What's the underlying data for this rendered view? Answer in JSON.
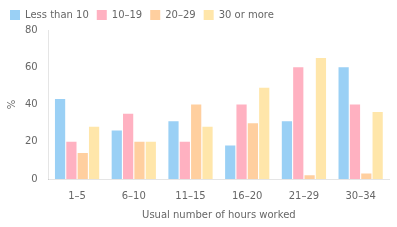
{
  "chart_data": {
    "type": "bar",
    "xlabel": "Usual number of hours worked",
    "ylabel": "%",
    "categories": [
      "1–5",
      "6–10",
      "11–15",
      "16–20",
      "21–29",
      "30–34"
    ],
    "series": [
      {
        "name": "Less than 10",
        "values": [
          43,
          26,
          31,
          18,
          31,
          60
        ]
      },
      {
        "name": "10–19",
        "values": [
          20,
          35,
          20,
          40,
          60,
          40
        ]
      },
      {
        "name": "20–29",
        "values": [
          14,
          20,
          40,
          30,
          2,
          3
        ]
      },
      {
        "name": "30 or more",
        "values": [
          28,
          20,
          28,
          49,
          65,
          36
        ]
      }
    ],
    "ylim": [
      0,
      80
    ],
    "yticks": [
      0,
      20,
      40,
      60,
      80
    ],
    "grid": false,
    "legend": "upper left"
  }
}
